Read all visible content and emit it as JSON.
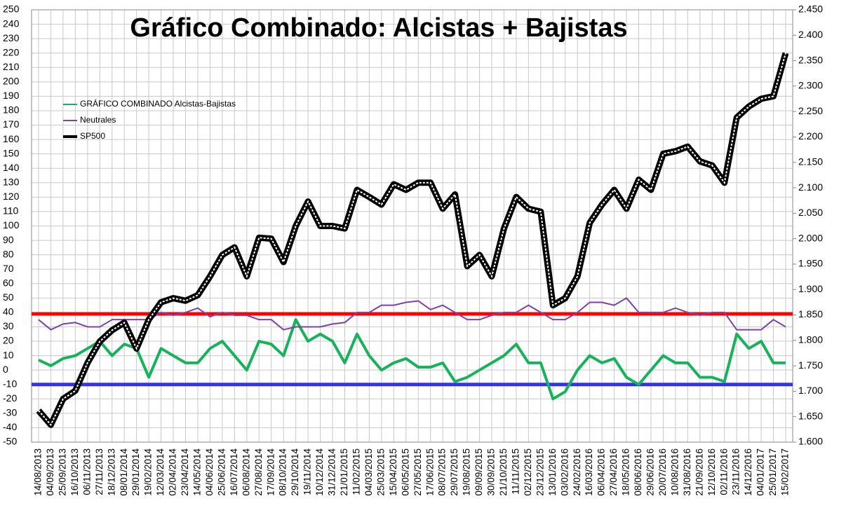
{
  "chart_data": {
    "type": "line",
    "title": "Gráfico Combinado: Alcistas + Bajistas",
    "categories": [
      "14/08/2013",
      "04/09/2013",
      "25/09/2013",
      "16/10/2013",
      "06/11/2013",
      "27/11/2013",
      "18/12/2013",
      "08/01/2014",
      "29/01/2014",
      "19/02/2014",
      "12/03/2014",
      "02/04/2014",
      "23/04/2014",
      "14/05/2014",
      "04/06/2014",
      "25/06/2014",
      "16/07/2014",
      "06/08/2014",
      "27/08/2014",
      "17/09/2014",
      "08/10/2014",
      "29/10/2014",
      "19/11/2014",
      "10/12/2014",
      "31/12/2014",
      "21/01/2015",
      "11/02/2015",
      "04/03/2015",
      "25/03/2015",
      "15/04/2015",
      "06/05/2015",
      "27/05/2015",
      "17/06/2015",
      "08/07/2015",
      "29/07/2015",
      "19/08/2015",
      "09/09/2015",
      "30/09/2015",
      "21/10/2015",
      "11/11/2015",
      "02/12/2015",
      "23/12/2015",
      "13/01/2016",
      "03/02/2016",
      "24/02/2016",
      "16/03/2016",
      "06/04/2016",
      "27/04/2016",
      "18/05/2016",
      "08/06/2016",
      "29/06/2016",
      "20/07/2016",
      "10/08/2016",
      "31/08/2016",
      "21/09/2016",
      "12/10/2016",
      "02/11/2016",
      "23/11/2016",
      "14/12/2016",
      "04/01/2017",
      "25/01/2017",
      "15/02/2017"
    ],
    "series": [
      {
        "name": "GRÁFICO COMBINADO Alcistas-Bajistas",
        "color": "#16b35a",
        "values": [
          7,
          3,
          8,
          10,
          15,
          20,
          10,
          18,
          15,
          -5,
          15,
          10,
          5,
          5,
          15,
          20,
          10,
          0,
          20,
          18,
          10,
          35,
          20,
          25,
          20,
          5,
          25,
          10,
          0,
          5,
          8,
          2,
          2,
          5,
          -8,
          -5,
          0,
          5,
          10,
          18,
          5,
          5,
          -20,
          -15,
          0,
          10,
          5,
          8,
          -5,
          -10,
          0,
          10,
          5,
          5,
          -5,
          -5,
          -8,
          25,
          15,
          20,
          5,
          5
        ]
      },
      {
        "name": "Neutrales",
        "color": "#8040a8",
        "values": [
          35,
          28,
          32,
          33,
          30,
          30,
          35,
          35,
          35,
          35,
          40,
          38,
          40,
          43,
          37,
          40,
          38,
          38,
          35,
          35,
          28,
          30,
          30,
          30,
          32,
          33,
          40,
          40,
          45,
          45,
          47,
          48,
          42,
          45,
          40,
          35,
          35,
          38,
          40,
          40,
          45,
          40,
          35,
          35,
          40,
          47,
          47,
          45,
          50,
          40,
          40,
          40,
          43,
          40,
          38,
          40,
          40,
          28,
          28,
          28,
          35,
          30
        ]
      },
      {
        "name": "SP500",
        "color": "#000000",
        "axis": "y2",
        "values": [
          1662,
          1634,
          1685,
          1701,
          1756,
          1798,
          1820,
          1835,
          1784,
          1841,
          1875,
          1883,
          1878,
          1889,
          1926,
          1968,
          1983,
          1926,
          2002,
          2000,
          1954,
          2025,
          2073,
          2025,
          2025,
          2020,
          2096,
          2082,
          2067,
          2107,
          2096,
          2110,
          2110,
          2059,
          2087,
          1946,
          1968,
          1926,
          2020,
          2082,
          2059,
          2053,
          1869,
          1883,
          1926,
          2031,
          2067,
          2096,
          2059,
          2116,
          2096,
          2167,
          2172,
          2181,
          2152,
          2144,
          2110,
          2238,
          2260,
          2275,
          2280,
          2365
        ]
      }
    ],
    "reference_lines": [
      {
        "value": 39,
        "color": "#ff0000"
      },
      {
        "value": -10,
        "color": "#3333ee"
      }
    ],
    "ylim": [
      -50,
      250
    ],
    "yticks": [
      -50,
      -40,
      -30,
      -20,
      -10,
      0,
      10,
      20,
      30,
      40,
      50,
      60,
      70,
      80,
      90,
      100,
      110,
      120,
      130,
      140,
      150,
      160,
      170,
      180,
      190,
      200,
      210,
      220,
      230,
      240,
      250
    ],
    "y2lim": [
      1600,
      2450
    ],
    "y2ticks": [
      {
        "value": 1600,
        "label": "1.600"
      },
      {
        "value": 1650,
        "label": "1.650"
      },
      {
        "value": 1700,
        "label": "1.700"
      },
      {
        "value": 1750,
        "label": "1.750"
      },
      {
        "value": 1800,
        "label": "1.800"
      },
      {
        "value": 1850,
        "label": "1.850"
      },
      {
        "value": 1900,
        "label": "1.900"
      },
      {
        "value": 1950,
        "label": "1.950"
      },
      {
        "value": 2000,
        "label": "2.000"
      },
      {
        "value": 2050,
        "label": "2.050"
      },
      {
        "value": 2100,
        "label": "2.100"
      },
      {
        "value": 2150,
        "label": "2.150"
      },
      {
        "value": 2200,
        "label": "2.200"
      },
      {
        "value": 2250,
        "label": "2.250"
      },
      {
        "value": 2300,
        "label": "2.300"
      },
      {
        "value": 2350,
        "label": "2.350"
      },
      {
        "value": 2400,
        "label": "2.400"
      },
      {
        "value": 2450,
        "label": "2.450"
      }
    ],
    "grid": true
  }
}
